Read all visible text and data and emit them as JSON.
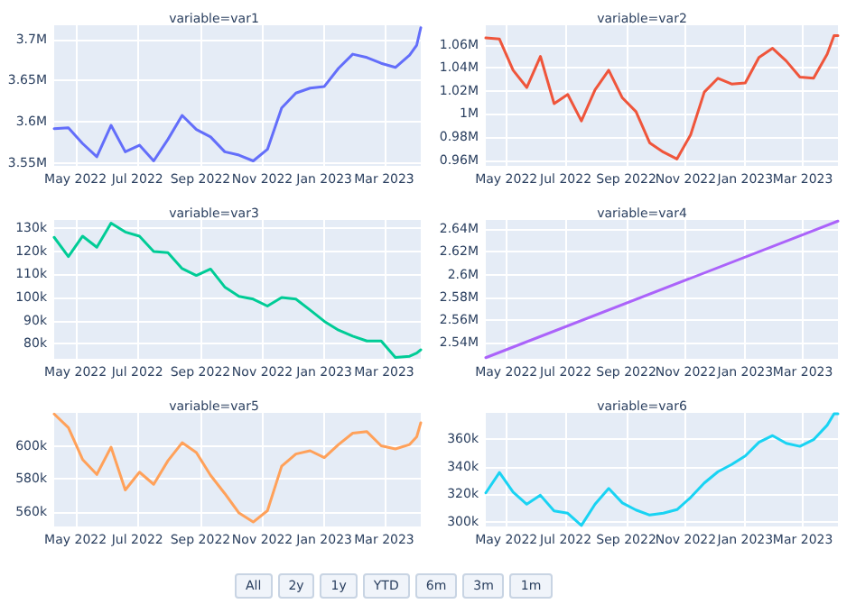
{
  "chart_data": [
    {
      "type": "line",
      "title": "variable=var1",
      "x": [
        "2022-04-10",
        "2022-04-24",
        "2022-05-08",
        "2022-05-22",
        "2022-06-05",
        "2022-06-19",
        "2022-07-03",
        "2022-07-17",
        "2022-07-31",
        "2022-08-14",
        "2022-08-28",
        "2022-09-11",
        "2022-09-25",
        "2022-10-09",
        "2022-10-23",
        "2022-11-06",
        "2022-11-20",
        "2022-12-04",
        "2022-12-18",
        "2023-01-01",
        "2023-01-15",
        "2023-01-29",
        "2023-02-12",
        "2023-02-26",
        "2023-03-12",
        "2023-03-26",
        "2023-04-02",
        "2023-04-06"
      ],
      "series": [
        {
          "color": "#636efa",
          "values": [
            3592000,
            3593000,
            3574000,
            3558000,
            3596000,
            3564000,
            3572000,
            3553000,
            3579000,
            3608000,
            3591000,
            3582000,
            3564000,
            3560000,
            3553000,
            3567000,
            3617000,
            3635000,
            3641000,
            3643000,
            3665000,
            3682000,
            3678000,
            3671000,
            3666000,
            3681000,
            3693000,
            3714000
          ]
        }
      ],
      "xlim": [
        "2022-04-10",
        "2023-04-06"
      ],
      "xticks": [
        {
          "value": "2022-05-01",
          "label": "May 2022"
        },
        {
          "value": "2022-07-01",
          "label": "Jul 2022"
        },
        {
          "value": "2022-09-01",
          "label": "Sep 2022"
        },
        {
          "value": "2022-11-01",
          "label": "Nov 2022"
        },
        {
          "value": "2023-01-01",
          "label": "Jan 2023"
        },
        {
          "value": "2023-03-01",
          "label": "Mar 2023"
        }
      ],
      "ylim": [
        3547000,
        3717000
      ],
      "yticks": [
        {
          "value": 3550000,
          "label": "3.55M"
        },
        {
          "value": 3600000,
          "label": "3.6M"
        },
        {
          "value": 3650000,
          "label": "3.65M"
        },
        {
          "value": 3700000,
          "label": "3.7M"
        }
      ],
      "grid": true
    },
    {
      "type": "line",
      "title": "variable=var2",
      "x": [
        "2022-04-10",
        "2022-04-24",
        "2022-05-08",
        "2022-05-22",
        "2022-06-05",
        "2022-06-19",
        "2022-07-03",
        "2022-07-17",
        "2022-07-31",
        "2022-08-14",
        "2022-08-28",
        "2022-09-11",
        "2022-09-25",
        "2022-10-09",
        "2022-10-23",
        "2022-11-06",
        "2022-11-20",
        "2022-12-04",
        "2022-12-18",
        "2023-01-01",
        "2023-01-15",
        "2023-01-29",
        "2023-02-12",
        "2023-02-26",
        "2023-03-12",
        "2023-03-26",
        "2023-04-02",
        "2023-04-06"
      ],
      "series": [
        {
          "color": "#ef553b",
          "values": [
            1066000,
            1065000,
            1038000,
            1023000,
            1050000,
            1009000,
            1017000,
            994000,
            1021000,
            1038000,
            1014000,
            1002000,
            975000,
            967000,
            961000,
            982000,
            1019000,
            1031000,
            1026000,
            1027000,
            1049000,
            1057000,
            1046000,
            1032000,
            1031000,
            1052000,
            1068000,
            1068000
          ]
        }
      ],
      "xlim": [
        "2022-04-10",
        "2023-04-06"
      ],
      "xticks": [
        {
          "value": "2022-05-01",
          "label": "May 2022"
        },
        {
          "value": "2022-07-01",
          "label": "Jul 2022"
        },
        {
          "value": "2022-09-01",
          "label": "Sep 2022"
        },
        {
          "value": "2022-11-01",
          "label": "Nov 2022"
        },
        {
          "value": "2023-01-01",
          "label": "Jan 2023"
        },
        {
          "value": "2023-03-01",
          "label": "Mar 2023"
        }
      ],
      "ylim": [
        955000,
        1077000
      ],
      "yticks": [
        {
          "value": 960000,
          "label": "0.96M"
        },
        {
          "value": 980000,
          "label": "0.98M"
        },
        {
          "value": 1000000,
          "label": "1M"
        },
        {
          "value": 1020000,
          "label": "1.02M"
        },
        {
          "value": 1040000,
          "label": "1.04M"
        },
        {
          "value": 1060000,
          "label": "1.06M"
        }
      ],
      "grid": true
    },
    {
      "type": "line",
      "title": "variable=var3",
      "x": [
        "2022-04-10",
        "2022-04-24",
        "2022-05-08",
        "2022-05-22",
        "2022-06-05",
        "2022-06-19",
        "2022-07-03",
        "2022-07-17",
        "2022-07-31",
        "2022-08-14",
        "2022-08-28",
        "2022-09-11",
        "2022-09-25",
        "2022-10-09",
        "2022-10-23",
        "2022-11-06",
        "2022-11-20",
        "2022-12-04",
        "2022-12-18",
        "2023-01-01",
        "2023-01-15",
        "2023-01-29",
        "2023-02-12",
        "2023-02-26",
        "2023-03-12",
        "2023-03-26",
        "2023-04-02",
        "2023-04-06"
      ],
      "series": [
        {
          "color": "#00cc96",
          "values": [
            126000,
            117700,
            126500,
            121700,
            132100,
            128300,
            126500,
            119900,
            119400,
            112500,
            109500,
            112300,
            104500,
            100500,
            99300,
            96300,
            100000,
            99300,
            94600,
            89700,
            85900,
            83300,
            81200,
            81200,
            74100,
            74600,
            76000,
            77400
          ]
        }
      ],
      "xlim": [
        "2022-04-10",
        "2023-04-06"
      ],
      "xticks": [
        {
          "value": "2022-05-01",
          "label": "May 2022"
        },
        {
          "value": "2022-07-01",
          "label": "Jul 2022"
        },
        {
          "value": "2022-09-01",
          "label": "Sep 2022"
        },
        {
          "value": "2022-11-01",
          "label": "Nov 2022"
        },
        {
          "value": "2023-01-01",
          "label": "Jan 2023"
        },
        {
          "value": "2023-03-01",
          "label": "Mar 2023"
        }
      ],
      "ylim": [
        73500,
        133500
      ],
      "yticks": [
        {
          "value": 80000,
          "label": "80k"
        },
        {
          "value": 90000,
          "label": "90k"
        },
        {
          "value": 100000,
          "label": "100k"
        },
        {
          "value": 110000,
          "label": "110k"
        },
        {
          "value": 120000,
          "label": "120k"
        },
        {
          "value": 130000,
          "label": "130k"
        }
      ],
      "grid": true
    },
    {
      "type": "line",
      "title": "variable=var4",
      "x": [
        "2022-04-10",
        "2023-04-06"
      ],
      "series": [
        {
          "color": "#ab63fa",
          "values": [
            2527000,
            2647000
          ]
        }
      ],
      "xlim": [
        "2022-04-10",
        "2023-04-06"
      ],
      "xticks": [
        {
          "value": "2022-05-01",
          "label": "May 2022"
        },
        {
          "value": "2022-07-01",
          "label": "Jul 2022"
        },
        {
          "value": "2022-09-01",
          "label": "Sep 2022"
        },
        {
          "value": "2022-11-01",
          "label": "Nov 2022"
        },
        {
          "value": "2023-01-01",
          "label": "Jan 2023"
        },
        {
          "value": "2023-03-01",
          "label": "Mar 2023"
        }
      ],
      "ylim": [
        2526000,
        2648000
      ],
      "yticks": [
        {
          "value": 2540000,
          "label": "2.54M"
        },
        {
          "value": 2560000,
          "label": "2.56M"
        },
        {
          "value": 2580000,
          "label": "2.58M"
        },
        {
          "value": 2600000,
          "label": "2.6M"
        },
        {
          "value": 2620000,
          "label": "2.62M"
        },
        {
          "value": 2640000,
          "label": "2.64M"
        }
      ],
      "grid": true
    },
    {
      "type": "line",
      "title": "variable=var5",
      "x": [
        "2022-04-10",
        "2022-04-24",
        "2022-05-08",
        "2022-05-22",
        "2022-06-05",
        "2022-06-19",
        "2022-07-03",
        "2022-07-17",
        "2022-07-31",
        "2022-08-14",
        "2022-08-28",
        "2022-09-11",
        "2022-09-25",
        "2022-10-09",
        "2022-10-23",
        "2022-11-06",
        "2022-11-20",
        "2022-12-04",
        "2022-12-18",
        "2023-01-01",
        "2023-01-15",
        "2023-01-29",
        "2023-02-12",
        "2023-02-26",
        "2023-03-12",
        "2023-03-26",
        "2023-04-02",
        "2023-04-06"
      ],
      "series": [
        {
          "color": "#ffa15a",
          "values": [
            619300,
            611000,
            591700,
            582600,
            599200,
            573200,
            584000,
            576600,
            590900,
            601900,
            595900,
            582100,
            571000,
            559200,
            553700,
            560600,
            587600,
            595000,
            597000,
            592800,
            600800,
            607700,
            608600,
            600000,
            598100,
            600800,
            605500,
            614000
          ]
        }
      ],
      "xlim": [
        "2022-04-10",
        "2023-04-06"
      ],
      "xticks": [
        {
          "value": "2022-05-01",
          "label": "May 2022"
        },
        {
          "value": "2022-07-01",
          "label": "Jul 2022"
        },
        {
          "value": "2022-09-01",
          "label": "Sep 2022"
        },
        {
          "value": "2022-11-01",
          "label": "Nov 2022"
        },
        {
          "value": "2023-01-01",
          "label": "Jan 2023"
        },
        {
          "value": "2023-03-01",
          "label": "Mar 2023"
        }
      ],
      "ylim": [
        551000,
        620000
      ],
      "yticks": [
        {
          "value": 560000,
          "label": "560k"
        },
        {
          "value": 580000,
          "label": "580k"
        },
        {
          "value": 600000,
          "label": "600k"
        }
      ],
      "grid": true,
      "annotations": [
        "All",
        "2y",
        "1y",
        "YTD",
        "6m",
        "3m",
        "1m"
      ]
    },
    {
      "type": "line",
      "title": "variable=var6",
      "x": [
        "2022-04-10",
        "2022-04-24",
        "2022-05-08",
        "2022-05-22",
        "2022-06-05",
        "2022-06-19",
        "2022-07-03",
        "2022-07-17",
        "2022-07-31",
        "2022-08-14",
        "2022-08-28",
        "2022-09-11",
        "2022-09-25",
        "2022-10-09",
        "2022-10-23",
        "2022-11-06",
        "2022-11-20",
        "2022-12-04",
        "2022-12-18",
        "2023-01-01",
        "2023-01-15",
        "2023-01-29",
        "2023-02-12",
        "2023-02-26",
        "2023-03-12",
        "2023-03-26",
        "2023-04-02",
        "2023-04-06"
      ],
      "series": [
        {
          "color": "#19d3f3",
          "values": [
            321100,
            335700,
            321700,
            313000,
            319400,
            308100,
            306500,
            297700,
            313000,
            324300,
            313900,
            308800,
            305200,
            306500,
            309100,
            317800,
            328200,
            336300,
            341500,
            347600,
            357400,
            362200,
            356700,
            354500,
            359300,
            369700,
            377800,
            377800
          ]
        }
      ],
      "xlim": [
        "2022-04-10",
        "2023-04-06"
      ],
      "xticks": [
        {
          "value": "2022-05-01",
          "label": "May 2022"
        },
        {
          "value": "2022-07-01",
          "label": "Jul 2022"
        },
        {
          "value": "2022-09-01",
          "label": "Sep 2022"
        },
        {
          "value": "2022-11-01",
          "label": "Nov 2022"
        },
        {
          "value": "2023-01-01",
          "label": "Jan 2023"
        },
        {
          "value": "2023-03-01",
          "label": "Mar 2023"
        }
      ],
      "ylim": [
        297000,
        378500
      ],
      "yticks": [
        {
          "value": 300000,
          "label": "300k"
        },
        {
          "value": 320000,
          "label": "320k"
        },
        {
          "value": 340000,
          "label": "340k"
        },
        {
          "value": 360000,
          "label": "360k"
        }
      ],
      "grid": true
    }
  ]
}
